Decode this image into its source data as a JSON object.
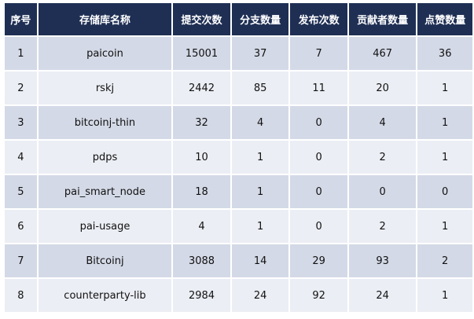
{
  "table": {
    "headers": [
      "序号",
      "存储库名称",
      "提交次数",
      "分支数量",
      "发布次数",
      "贡献者数量",
      "点赞数量"
    ],
    "rows": [
      [
        "1",
        "paicoin",
        "15001",
        "37",
        "7",
        "467",
        "36"
      ],
      [
        "2",
        "rskj",
        "2442",
        "85",
        "11",
        "20",
        "1"
      ],
      [
        "3",
        "bitcoinj-thin",
        "32",
        "4",
        "0",
        "4",
        "1"
      ],
      [
        "4",
        "pdps",
        "10",
        "1",
        "0",
        "2",
        "1"
      ],
      [
        "5",
        "pai_smart_node",
        "18",
        "1",
        "0",
        "0",
        "0"
      ],
      [
        "6",
        "pai-usage",
        "4",
        "1",
        "0",
        "2",
        "1"
      ],
      [
        "7",
        "Bitcoinj",
        "3088",
        "14",
        "29",
        "93",
        "2"
      ],
      [
        "8",
        "counterparty-lib",
        "2984",
        "24",
        "92",
        "24",
        "1"
      ]
    ]
  },
  "colors": {
    "header_bg": "#1f2f54",
    "header_text": "#ffffff",
    "row_odd_bg": "#d3d9e6",
    "row_even_bg": "#ebeef4"
  }
}
